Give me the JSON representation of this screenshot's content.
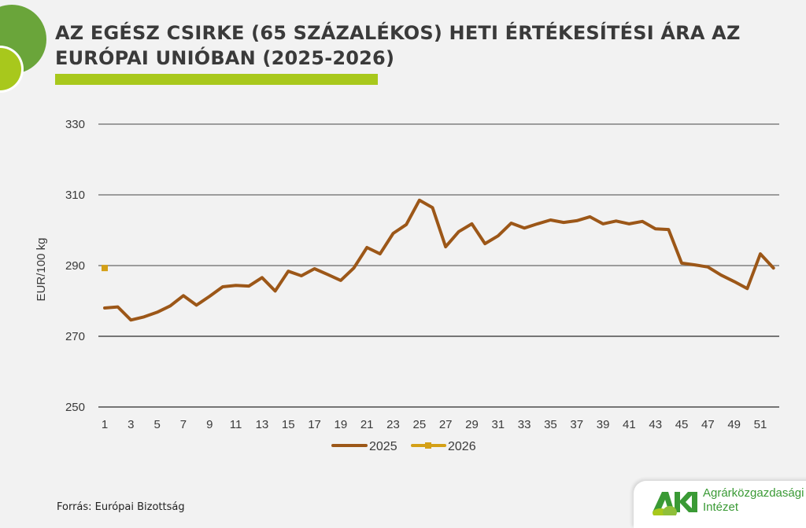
{
  "header": {
    "title_line1": "AZ EGÉSZ CSIRKE (65 SZÁZALÉKOS) HETI ÉRTÉKESÍTÉSI ÁRA AZ",
    "title_line2": "EURÓPAI UNIÓBAN (2025-2026)"
  },
  "colors": {
    "background": "#f2f2f2",
    "title": "#3a3a3a",
    "accent_bar": "#a8c81c",
    "deco_dark_green": "#6aa53a",
    "deco_lime": "#a8c81c",
    "series_2025": "#9c5718",
    "series_2026": "#d4a017",
    "grid_light": "#808080",
    "grid_dark": "#2b2b2b",
    "logo_green": "#3a9a35"
  },
  "footer": {
    "source": "Forrás: Európai Bizottság",
    "logo_abbr": "AKI",
    "logo_line1": "Agrárközgazdasági",
    "logo_line2": "Intézet"
  },
  "chart_data": {
    "type": "line",
    "title": "AZ EGÉSZ CSIRKE (65 SZÁZALÉKOS) HETI ÉRTÉKESÍTÉSI ÁRA AZ EURÓPAI UNIÓBAN (2025-2026)",
    "xlabel": "",
    "ylabel": "EUR/100 kg",
    "ylim": [
      250,
      330
    ],
    "yticks": [
      250,
      270,
      290,
      310,
      330
    ],
    "xticks": [
      1,
      3,
      5,
      7,
      9,
      11,
      13,
      15,
      17,
      19,
      21,
      23,
      25,
      27,
      29,
      31,
      33,
      35,
      37,
      39,
      41,
      43,
      45,
      47,
      49,
      51
    ],
    "x": [
      1,
      2,
      3,
      4,
      5,
      6,
      7,
      8,
      9,
      10,
      11,
      12,
      13,
      14,
      15,
      16,
      17,
      18,
      19,
      20,
      21,
      22,
      23,
      24,
      25,
      26,
      27,
      28,
      29,
      30,
      31,
      32,
      33,
      34,
      35,
      36,
      37,
      38,
      39,
      40,
      41,
      42,
      43,
      44,
      45,
      46,
      47,
      48,
      49,
      50,
      51,
      52
    ],
    "grid": true,
    "legend_position": "bottom",
    "series": [
      {
        "name": "2025",
        "values": [
          278.0,
          278.3,
          274.6,
          275.5,
          276.8,
          278.6,
          281.5,
          278.8,
          281.3,
          284.0,
          284.4,
          284.2,
          286.6,
          282.8,
          288.4,
          287.1,
          289.1,
          287.5,
          285.8,
          289.3,
          295.1,
          293.3,
          299.1,
          301.6,
          308.5,
          306.4,
          295.3,
          299.6,
          301.8,
          296.2,
          298.4,
          302.0,
          300.6,
          301.8,
          302.9,
          302.2,
          302.7,
          303.8,
          301.8,
          302.6,
          301.8,
          302.5,
          300.4,
          300.2,
          290.7,
          290.2,
          289.6,
          287.3,
          285.5,
          283.5,
          293.3,
          289.3
        ]
      },
      {
        "name": "2026",
        "values": [
          289.3
        ]
      }
    ]
  }
}
